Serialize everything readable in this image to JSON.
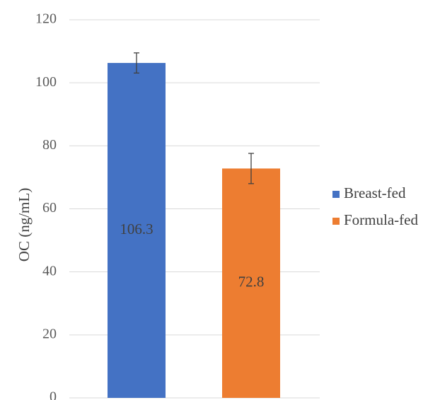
{
  "chart_data": {
    "type": "bar",
    "title": "",
    "xlabel": "",
    "ylabel": "OC (ng/mL)",
    "ylim": [
      0,
      120
    ],
    "yticks": [
      0,
      20,
      40,
      60,
      80,
      100,
      120
    ],
    "grid": true,
    "legend_position": "right",
    "series": [
      {
        "name": "Breast-fed",
        "value": 106.3,
        "error": 3.2,
        "label": "106.3",
        "color": "#4472C4"
      },
      {
        "name": "Formula-fed",
        "value": 72.8,
        "error": 4.8,
        "label": "72.8",
        "color": "#ED7D31"
      }
    ]
  }
}
